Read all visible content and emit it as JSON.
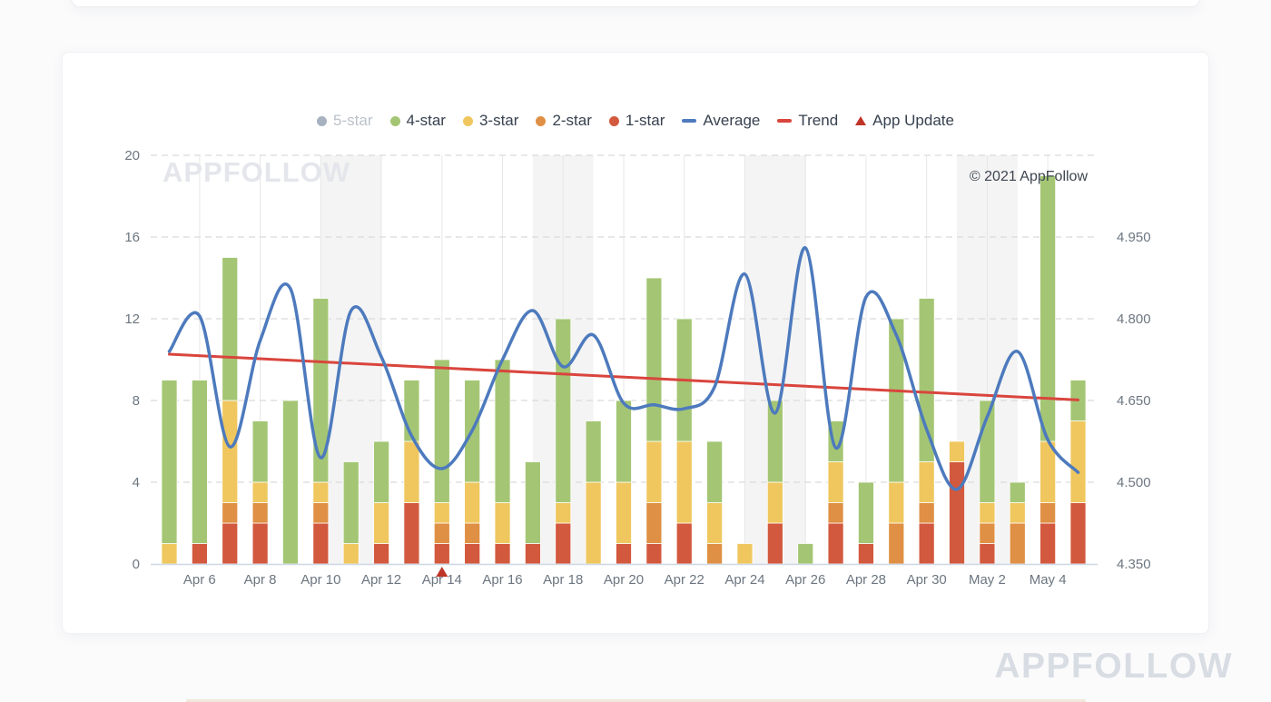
{
  "page": {
    "copyright": "© 2021 AppFollow",
    "chart_watermark": "APPFOLLOW",
    "footer_watermark": "APPFOLLOW"
  },
  "colors": {
    "one_star": "#d2593e",
    "two_star": "#df9044",
    "three_star": "#efc75e",
    "four_star": "#a4c674",
    "five_star": "#a8b1bf",
    "average": "#4d7abd",
    "trend": "#d9453d",
    "app_update": "#bf3527",
    "weekend_band": "#f4f4f4",
    "v_grid": "#e7e7e7",
    "h_grid": "#dbdbdb",
    "axis_line": "#cdd7e5",
    "tick_text": "#6c7680",
    "legend_text": "#37414f",
    "legend_disabled_text": "#bcc2ca"
  },
  "chart_data": {
    "type": "bar",
    "subtype": "stacked-bars-with-lines",
    "title": "",
    "xlabel": "",
    "ylabel": "",
    "grid": true,
    "legend_position": "top-center",
    "categories": [
      "Apr 5",
      "Apr 6",
      "Apr 7",
      "Apr 8",
      "Apr 9",
      "Apr 10",
      "Apr 11",
      "Apr 12",
      "Apr 13",
      "Apr 14",
      "Apr 15",
      "Apr 16",
      "Apr 17",
      "Apr 18",
      "Apr 19",
      "Apr 20",
      "Apr 21",
      "Apr 22",
      "Apr 23",
      "Apr 24",
      "Apr 25",
      "Apr 26",
      "Apr 27",
      "Apr 28",
      "Apr 29",
      "Apr 30",
      "May 1",
      "May 2",
      "May 3",
      "May 4",
      "May 5"
    ],
    "series": [
      {
        "name": "1-star",
        "type": "bar",
        "stack_order": 1,
        "values": [
          0,
          1,
          2,
          2,
          0,
          2,
          0,
          1,
          3,
          1,
          1,
          1,
          1,
          2,
          0,
          1,
          1,
          2,
          0,
          0,
          2,
          0,
          2,
          1,
          0,
          2,
          5,
          1,
          0,
          2,
          3
        ]
      },
      {
        "name": "2-star",
        "type": "bar",
        "stack_order": 2,
        "values": [
          0,
          0,
          1,
          1,
          0,
          1,
          0,
          0,
          0,
          1,
          1,
          0,
          0,
          0,
          0,
          0,
          2,
          0,
          1,
          0,
          0,
          0,
          1,
          0,
          2,
          1,
          0,
          1,
          2,
          1,
          0
        ]
      },
      {
        "name": "3-star",
        "type": "bar",
        "stack_order": 3,
        "values": [
          1,
          0,
          5,
          1,
          0,
          1,
          1,
          2,
          3,
          1,
          2,
          2,
          0,
          1,
          4,
          3,
          3,
          4,
          2,
          1,
          2,
          0,
          2,
          0,
          2,
          2,
          1,
          1,
          1,
          3,
          4
        ]
      },
      {
        "name": "4-star",
        "type": "bar",
        "stack_order": 4,
        "values": [
          8,
          8,
          7,
          3,
          8,
          9,
          4,
          3,
          3,
          7,
          5,
          7,
          4,
          9,
          3,
          4,
          8,
          6,
          3,
          0,
          4,
          1,
          2,
          3,
          8,
          8,
          0,
          5,
          1,
          13,
          2
        ]
      },
      {
        "name": "5-star",
        "type": "bar",
        "hidden": true,
        "values": []
      },
      {
        "name": "Average",
        "type": "line",
        "axis": "right",
        "values": [
          4.74,
          4.805,
          4.565,
          4.76,
          4.855,
          4.545,
          4.815,
          4.73,
          4.585,
          4.525,
          4.595,
          4.725,
          4.815,
          4.712,
          4.77,
          4.645,
          4.642,
          4.635,
          4.675,
          4.882,
          4.627,
          4.93,
          4.563,
          4.84,
          4.77,
          4.597,
          4.487,
          4.62,
          4.74,
          4.578,
          4.518
        ]
      },
      {
        "name": "Trend",
        "type": "trendline",
        "axis": "right",
        "start": 4.735,
        "end": 4.651
      },
      {
        "name": "App Update",
        "type": "marker",
        "positions": [
          "Apr 14"
        ]
      }
    ],
    "left_axis": {
      "ticks": [
        0,
        4,
        8,
        12,
        16,
        20
      ],
      "min": 0,
      "max": 20
    },
    "right_axis": {
      "tick_labels": [
        "4.350",
        "4.500",
        "4.650",
        "4.800",
        "4.950"
      ],
      "tick_values": [
        4.35,
        4.5,
        4.65,
        4.8,
        4.95
      ],
      "min": 4.35,
      "max": 5.1
    },
    "x_tick_labels": [
      "Apr 6",
      "Apr 8",
      "Apr 10",
      "Apr 12",
      "Apr 14",
      "Apr 16",
      "Apr 18",
      "Apr 20",
      "Apr 22",
      "Apr 24",
      "Apr 26",
      "Apr 28",
      "Apr 30",
      "May 2",
      "May 4"
    ],
    "weekend_bands": [
      [
        "Apr 10",
        "Apr 12"
      ],
      [
        "Apr 17",
        "Apr 19"
      ],
      [
        "Apr 24",
        "Apr 26"
      ],
      [
        "May 1",
        "May 3"
      ]
    ],
    "legend": [
      {
        "label": "5-star",
        "marker": "circle",
        "color_key": "five_star",
        "disabled": true
      },
      {
        "label": "4-star",
        "marker": "circle",
        "color_key": "four_star",
        "disabled": false
      },
      {
        "label": "3-star",
        "marker": "circle",
        "color_key": "three_star",
        "disabled": false
      },
      {
        "label": "2-star",
        "marker": "circle",
        "color_key": "two_star",
        "disabled": false
      },
      {
        "label": "1-star",
        "marker": "circle",
        "color_key": "one_star",
        "disabled": false
      },
      {
        "label": "Average",
        "marker": "line",
        "color_key": "average",
        "disabled": false
      },
      {
        "label": "Trend",
        "marker": "line",
        "color_key": "trend",
        "disabled": false
      },
      {
        "label": "App Update",
        "marker": "triangle",
        "color_key": "app_update",
        "disabled": false
      }
    ]
  }
}
